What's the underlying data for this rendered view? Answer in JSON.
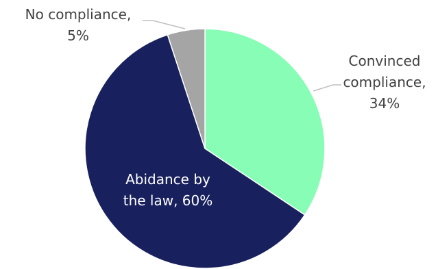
{
  "chart_data": {
    "type": "pie",
    "slices": [
      {
        "key": "convinced",
        "label_lines": [
          "Convinced",
          "compliance,",
          "34%"
        ],
        "value": 34,
        "color": "#88FDB6",
        "label_color": "#404040"
      },
      {
        "key": "abidance",
        "label_lines": [
          "Abidance by",
          "the law, 60%"
        ],
        "value": 60,
        "color": "#18215E",
        "label_color": "#FFFFFF"
      },
      {
        "key": "none",
        "label_lines": [
          "No compliance,",
          "5%"
        ],
        "value": 5,
        "color": "#A5A5A5",
        "label_color": "#404040"
      }
    ],
    "start_angle_deg": 0,
    "direction": "clockwise",
    "legend": "none",
    "leader_line_color": "#BFBFBF"
  }
}
